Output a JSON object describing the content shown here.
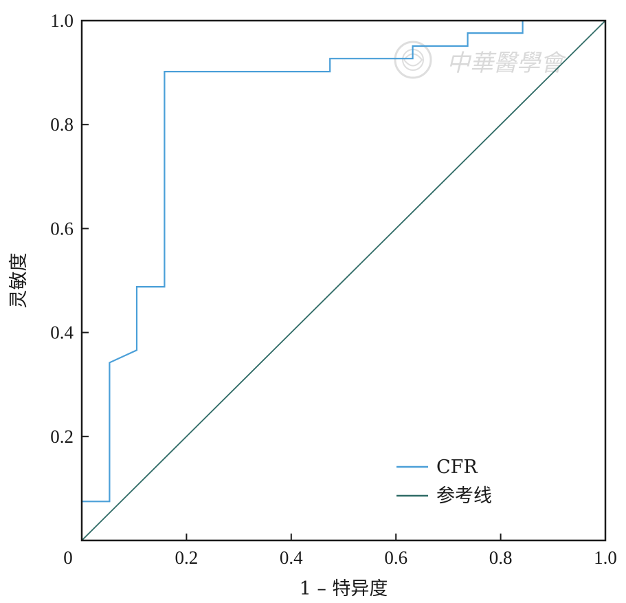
{
  "chart_data": {
    "type": "line",
    "title": "",
    "xlabel": "1 – 特异度",
    "ylabel": "灵敏度",
    "xlim": [
      0,
      1
    ],
    "ylim": [
      0,
      1
    ],
    "x_ticks": [
      0,
      0.2,
      0.4,
      0.6,
      0.8,
      1.0
    ],
    "x_tick_labels": [
      "0",
      "0.2",
      "0.4",
      "0.6",
      "0.8",
      "1.0"
    ],
    "y_ticks": [
      0.2,
      0.4,
      0.6,
      0.8,
      1.0
    ],
    "y_tick_labels": [
      "0.2",
      "0.4",
      "0.6",
      "0.8",
      "1.0"
    ],
    "grid": false,
    "legend_position": "bottom-right",
    "series": [
      {
        "name": "CFR",
        "color": "#4a9fd8",
        "points": [
          [
            0.0,
            0.075
          ],
          [
            0.053,
            0.075
          ],
          [
            0.053,
            0.342
          ],
          [
            0.105,
            0.366
          ],
          [
            0.105,
            0.488
          ],
          [
            0.158,
            0.488
          ],
          [
            0.158,
            0.902
          ],
          [
            0.474,
            0.902
          ],
          [
            0.474,
            0.927
          ],
          [
            0.632,
            0.927
          ],
          [
            0.632,
            0.951
          ],
          [
            0.737,
            0.951
          ],
          [
            0.737,
            0.976
          ],
          [
            0.842,
            0.976
          ],
          [
            0.842,
            1.0
          ]
        ]
      },
      {
        "name": "参考线",
        "color": "#2f6b66",
        "points": [
          [
            0.0,
            0.0
          ],
          [
            1.0,
            1.0
          ]
        ]
      }
    ]
  },
  "watermark": {
    "text": "中華醫學會",
    "color": "#d9d9d9"
  }
}
